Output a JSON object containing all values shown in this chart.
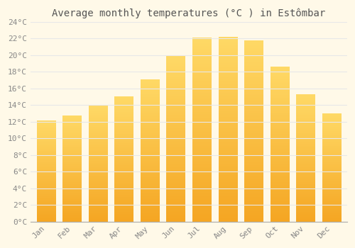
{
  "months": [
    "Jan",
    "Feb",
    "Mar",
    "Apr",
    "May",
    "Jun",
    "Jul",
    "Aug",
    "Sep",
    "Oct",
    "Nov",
    "Dec"
  ],
  "values": [
    12.1,
    12.7,
    13.9,
    15.0,
    17.1,
    19.9,
    22.1,
    22.2,
    21.8,
    18.6,
    15.3,
    13.0
  ],
  "bar_color_bottom": "#F5A623",
  "bar_color_top": "#FFD966",
  "title": "Average monthly temperatures (°C ) in Estômbar",
  "ylim": [
    0,
    24
  ],
  "ytick_step": 2,
  "background_color": "#FFF9E8",
  "grid_color": "#E8E8E8",
  "title_fontsize": 10,
  "tick_fontsize": 8,
  "label_color": "#888888"
}
